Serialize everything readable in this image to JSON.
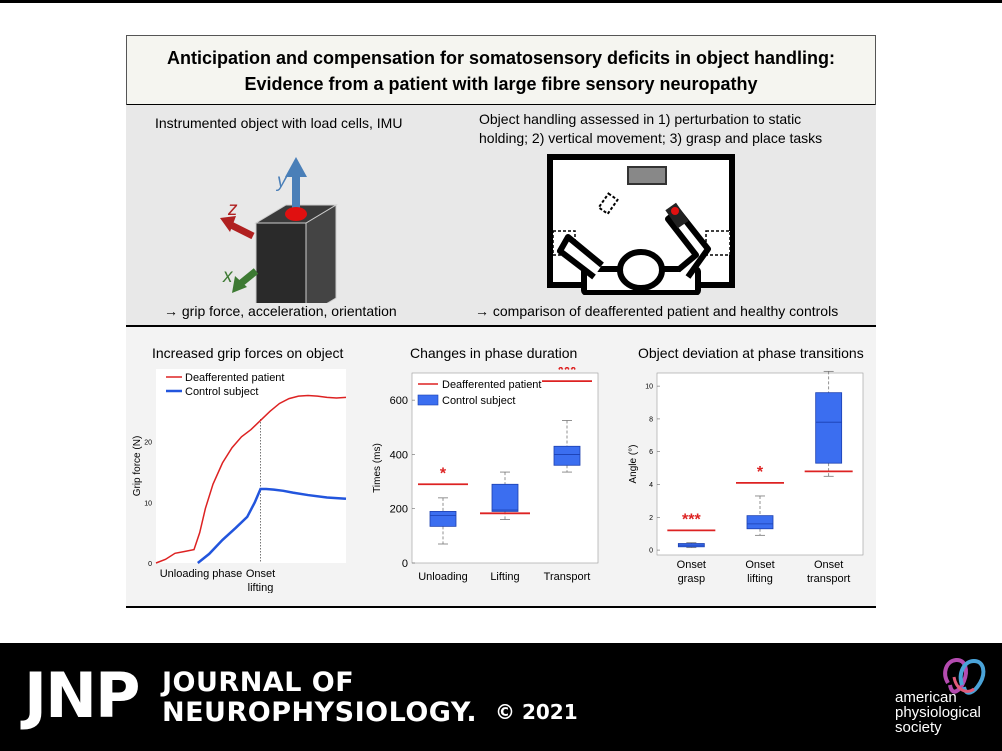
{
  "title": {
    "line1": "Anticipation and compensation for somatosensory deficits in object handling:",
    "line2": "Evidence from a patient with large fibre sensory neuropathy"
  },
  "middle": {
    "left_heading": "Instrumented object with load cells, IMU",
    "axis_y": "y",
    "axis_z": "z",
    "axis_x": "x",
    "left_result": "→ grip force, acceleration, orientation",
    "right_heading_line1": "Object handling assessed in 1) perturbation to static",
    "right_heading_line2": "holding; 2) vertical movement; 3) grasp and place tasks",
    "right_result": "→ comparison of deafferented patient and healthy controls"
  },
  "colors": {
    "patient": "#dd2222",
    "control": "#2255dd",
    "box_fill": "#3b6ef0",
    "y_arrow": "#4a7fb8",
    "z_arrow": "#b02020",
    "x_arrow": "#3d7a33"
  },
  "chart_data": [
    {
      "type": "line",
      "title": "Increased grip forces on object",
      "ylabel": "Grip force (N)",
      "yticks": [
        "0",
        "10",
        "20"
      ],
      "ylim": [
        0,
        30
      ],
      "xlabels": [
        "Unloading phase",
        "Onset",
        "lifting"
      ],
      "legend_location": "top-left",
      "series": [
        {
          "name": "Deafferented patient",
          "x": [
            0,
            5,
            10,
            15,
            20,
            23,
            26,
            30,
            35,
            40,
            45,
            50,
            55,
            60,
            65,
            70,
            75,
            80,
            85,
            90,
            95,
            100
          ],
          "y": [
            0,
            0.6,
            1.6,
            1.9,
            2.2,
            5,
            9,
            13,
            16.5,
            19,
            20.8,
            22,
            23.5,
            25,
            26.3,
            27.1,
            27.5,
            27.6,
            27.5,
            27.3,
            27.2,
            27.3
          ]
        },
        {
          "name": "Control subject",
          "x": [
            22,
            28,
            35,
            42,
            48,
            52,
            55,
            58,
            62,
            67,
            72,
            80,
            90,
            100
          ],
          "y": [
            0,
            1.5,
            3.8,
            5.8,
            7.6,
            10,
            12.2,
            12.2,
            12.1,
            11.9,
            11.6,
            11.2,
            10.8,
            10.6
          ]
        }
      ]
    },
    {
      "type": "box",
      "title": "Changes in phase duration",
      "ylabel": "Times (ms)",
      "ylim": [
        0,
        700
      ],
      "yticks": [
        "0",
        "200",
        "400",
        "600"
      ],
      "categories": [
        "Unloading",
        "Lifting",
        "Transport"
      ],
      "series": [
        {
          "name": "Control subject",
          "boxes": [
            {
              "min": 70,
              "q1": 135,
              "median": 175,
              "q3": 190,
              "max": 240
            },
            {
              "min": 160,
              "q1": 190,
              "median": 195,
              "q3": 290,
              "max": 335
            },
            {
              "min": 335,
              "q1": 360,
              "median": 400,
              "q3": 430,
              "max": 525
            }
          ]
        },
        {
          "name": "Deafferented patient",
          "values": [
            290,
            183,
            670
          ]
        }
      ],
      "significance": [
        "*",
        "",
        "***"
      ],
      "legend_location": "top-left"
    },
    {
      "type": "box",
      "title": "Object deviation at phase transitions",
      "ylabel": "Angle (°)",
      "ylim": [
        -0.3,
        10.8
      ],
      "yticks": [
        "0",
        "2",
        "4",
        "6",
        "8",
        "10"
      ],
      "categories": [
        "Onset grasp",
        "Onset lifting",
        "Onset transport"
      ],
      "category_lines": [
        [
          "Onset",
          "grasp"
        ],
        [
          "Onset",
          "lifting"
        ],
        [
          "Onset",
          "transport"
        ]
      ],
      "series": [
        {
          "name": "Control subject",
          "boxes": [
            {
              "min": 0.15,
              "q1": 0.2,
              "median": 0.3,
              "q3": 0.4,
              "max": 0.45
            },
            {
              "min": 0.9,
              "q1": 1.3,
              "median": 1.6,
              "q3": 2.1,
              "max": 3.3
            },
            {
              "min": 4.5,
              "q1": 5.3,
              "median": 7.8,
              "q3": 9.6,
              "max": 10.9
            }
          ]
        },
        {
          "name": "Deafferented patient",
          "values": [
            1.2,
            4.1,
            4.8
          ]
        }
      ],
      "significance": [
        "***",
        "*",
        ""
      ]
    }
  ],
  "footer": {
    "logo_jnp": "JNP",
    "journal_line1": "JOURNAL OF",
    "journal_line2": "NEUROPHYSIOLOGY.",
    "copyright": "© 2021",
    "society_line1": "american",
    "society_line2": "physiological",
    "society_line3": "society"
  }
}
